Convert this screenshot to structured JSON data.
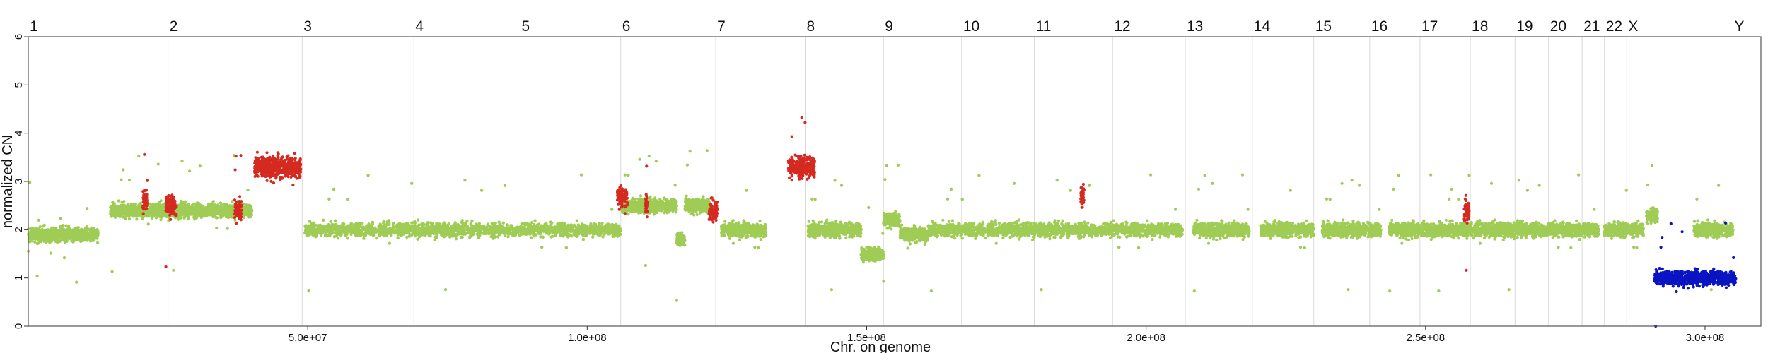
{
  "chart_data": {
    "type": "scatter",
    "title": "",
    "xlabel": "Chr. on genome",
    "ylabel": "normalized CN",
    "xlim": [
      0,
      310000000
    ],
    "ylim": [
      0,
      6
    ],
    "x_ticks": [
      50000000,
      100000000,
      150000000,
      200000000,
      250000000,
      300000000
    ],
    "x_tick_labels": [
      "5.0e+07",
      "1.0e+08",
      "1.5e+08",
      "2.0e+08",
      "2.5e+08",
      "3.0e+08"
    ],
    "y_ticks": [
      0,
      1,
      2,
      3,
      4,
      5,
      6
    ],
    "y_tick_labels": [
      "0",
      "1",
      "2",
      "3",
      "4",
      "5",
      "6"
    ],
    "grid": "vertical lines at chromosome boundaries",
    "legend": "none",
    "colors": {
      "gain": "#d42a20",
      "neutral": "#9fcc55",
      "loss": "#0a14c2"
    },
    "chromosomes": [
      {
        "name": "1",
        "start": 0,
        "end": 25000000
      },
      {
        "name": "2",
        "start": 25000000,
        "end": 49000000
      },
      {
        "name": "3",
        "start": 49000000,
        "end": 69000000
      },
      {
        "name": "4",
        "start": 69000000,
        "end": 88000000
      },
      {
        "name": "5",
        "start": 88000000,
        "end": 106000000
      },
      {
        "name": "6",
        "start": 106000000,
        "end": 123000000
      },
      {
        "name": "7",
        "start": 123000000,
        "end": 139000000
      },
      {
        "name": "8",
        "start": 139000000,
        "end": 153000000
      },
      {
        "name": "9",
        "start": 153000000,
        "end": 167000000
      },
      {
        "name": "10",
        "start": 167000000,
        "end": 180000000
      },
      {
        "name": "11",
        "start": 180000000,
        "end": 194000000
      },
      {
        "name": "12",
        "start": 194000000,
        "end": 207000000
      },
      {
        "name": "13",
        "start": 207000000,
        "end": 219000000
      },
      {
        "name": "14",
        "start": 219000000,
        "end": 230000000
      },
      {
        "name": "15",
        "start": 230000000,
        "end": 240000000
      },
      {
        "name": "16",
        "start": 240000000,
        "end": 249000000
      },
      {
        "name": "17",
        "start": 249000000,
        "end": 258000000
      },
      {
        "name": "18",
        "start": 258000000,
        "end": 266000000
      },
      {
        "name": "19",
        "start": 266000000,
        "end": 272000000
      },
      {
        "name": "20",
        "start": 272000000,
        "end": 278000000
      },
      {
        "name": "21",
        "start": 278000000,
        "end": 282000000
      },
      {
        "name": "22",
        "start": 282000000,
        "end": 286000000
      },
      {
        "name": "X",
        "start": 286000000,
        "end": 305000000
      },
      {
        "name": "Y",
        "start": 305000000,
        "end": 310000000
      }
    ],
    "series": [
      {
        "class": "neutral",
        "segments": [
          {
            "start": 0,
            "end": 12500000,
            "cn": 1.9
          },
          {
            "start": 14700000,
            "end": 40000000,
            "cn": 2.4
          },
          {
            "start": 49500000,
            "end": 106000000,
            "cn": 2.0
          },
          {
            "start": 106000000,
            "end": 116000000,
            "cn": 2.5
          },
          {
            "start": 116000000,
            "end": 117500000,
            "cn": 1.8
          },
          {
            "start": 117500000,
            "end": 122000000,
            "cn": 2.5
          },
          {
            "start": 124000000,
            "end": 132000000,
            "cn": 2.0
          },
          {
            "start": 139500000,
            "end": 149000000,
            "cn": 2.0
          },
          {
            "start": 149000000,
            "end": 153000000,
            "cn": 1.5
          },
          {
            "start": 153000000,
            "end": 156000000,
            "cn": 2.2
          },
          {
            "start": 156000000,
            "end": 161000000,
            "cn": 1.9
          },
          {
            "start": 161000000,
            "end": 206500000,
            "cn": 2.0
          },
          {
            "start": 208500000,
            "end": 218500000,
            "cn": 2.0
          },
          {
            "start": 220500000,
            "end": 230000000,
            "cn": 2.0
          },
          {
            "start": 231500000,
            "end": 242000000,
            "cn": 2.0
          },
          {
            "start": 243500000,
            "end": 252000000,
            "cn": 2.0
          },
          {
            "start": 252000000,
            "end": 281000000,
            "cn": 2.0
          },
          {
            "start": 282000000,
            "end": 289000000,
            "cn": 2.0
          },
          {
            "start": 289500000,
            "end": 291500000,
            "cn": 2.3
          },
          {
            "start": 298000000,
            "end": 305000000,
            "cn": 2.0
          }
        ]
      },
      {
        "class": "gain",
        "segments": [
          {
            "start": 20500000,
            "end": 21300000,
            "cn": 2.6
          },
          {
            "start": 24600000,
            "end": 26400000,
            "cn": 2.5
          },
          {
            "start": 36900000,
            "end": 38200000,
            "cn": 2.4
          },
          {
            "start": 40500000,
            "end": 48800000,
            "cn": 3.3
          },
          {
            "start": 105400000,
            "end": 107200000,
            "cn": 2.7
          },
          {
            "start": 110400000,
            "end": 110800000,
            "cn": 2.5
          },
          {
            "start": 121800000,
            "end": 123300000,
            "cn": 2.4
          },
          {
            "start": 136000000,
            "end": 140700000,
            "cn": 3.3
          },
          {
            "start": 188300000,
            "end": 188900000,
            "cn": 2.7
          },
          {
            "start": 256900000,
            "end": 257800000,
            "cn": 2.4
          }
        ]
      },
      {
        "class": "loss",
        "segments": [
          {
            "start": 291000000,
            "end": 305500000,
            "cn": 1.0
          }
        ]
      }
    ]
  }
}
